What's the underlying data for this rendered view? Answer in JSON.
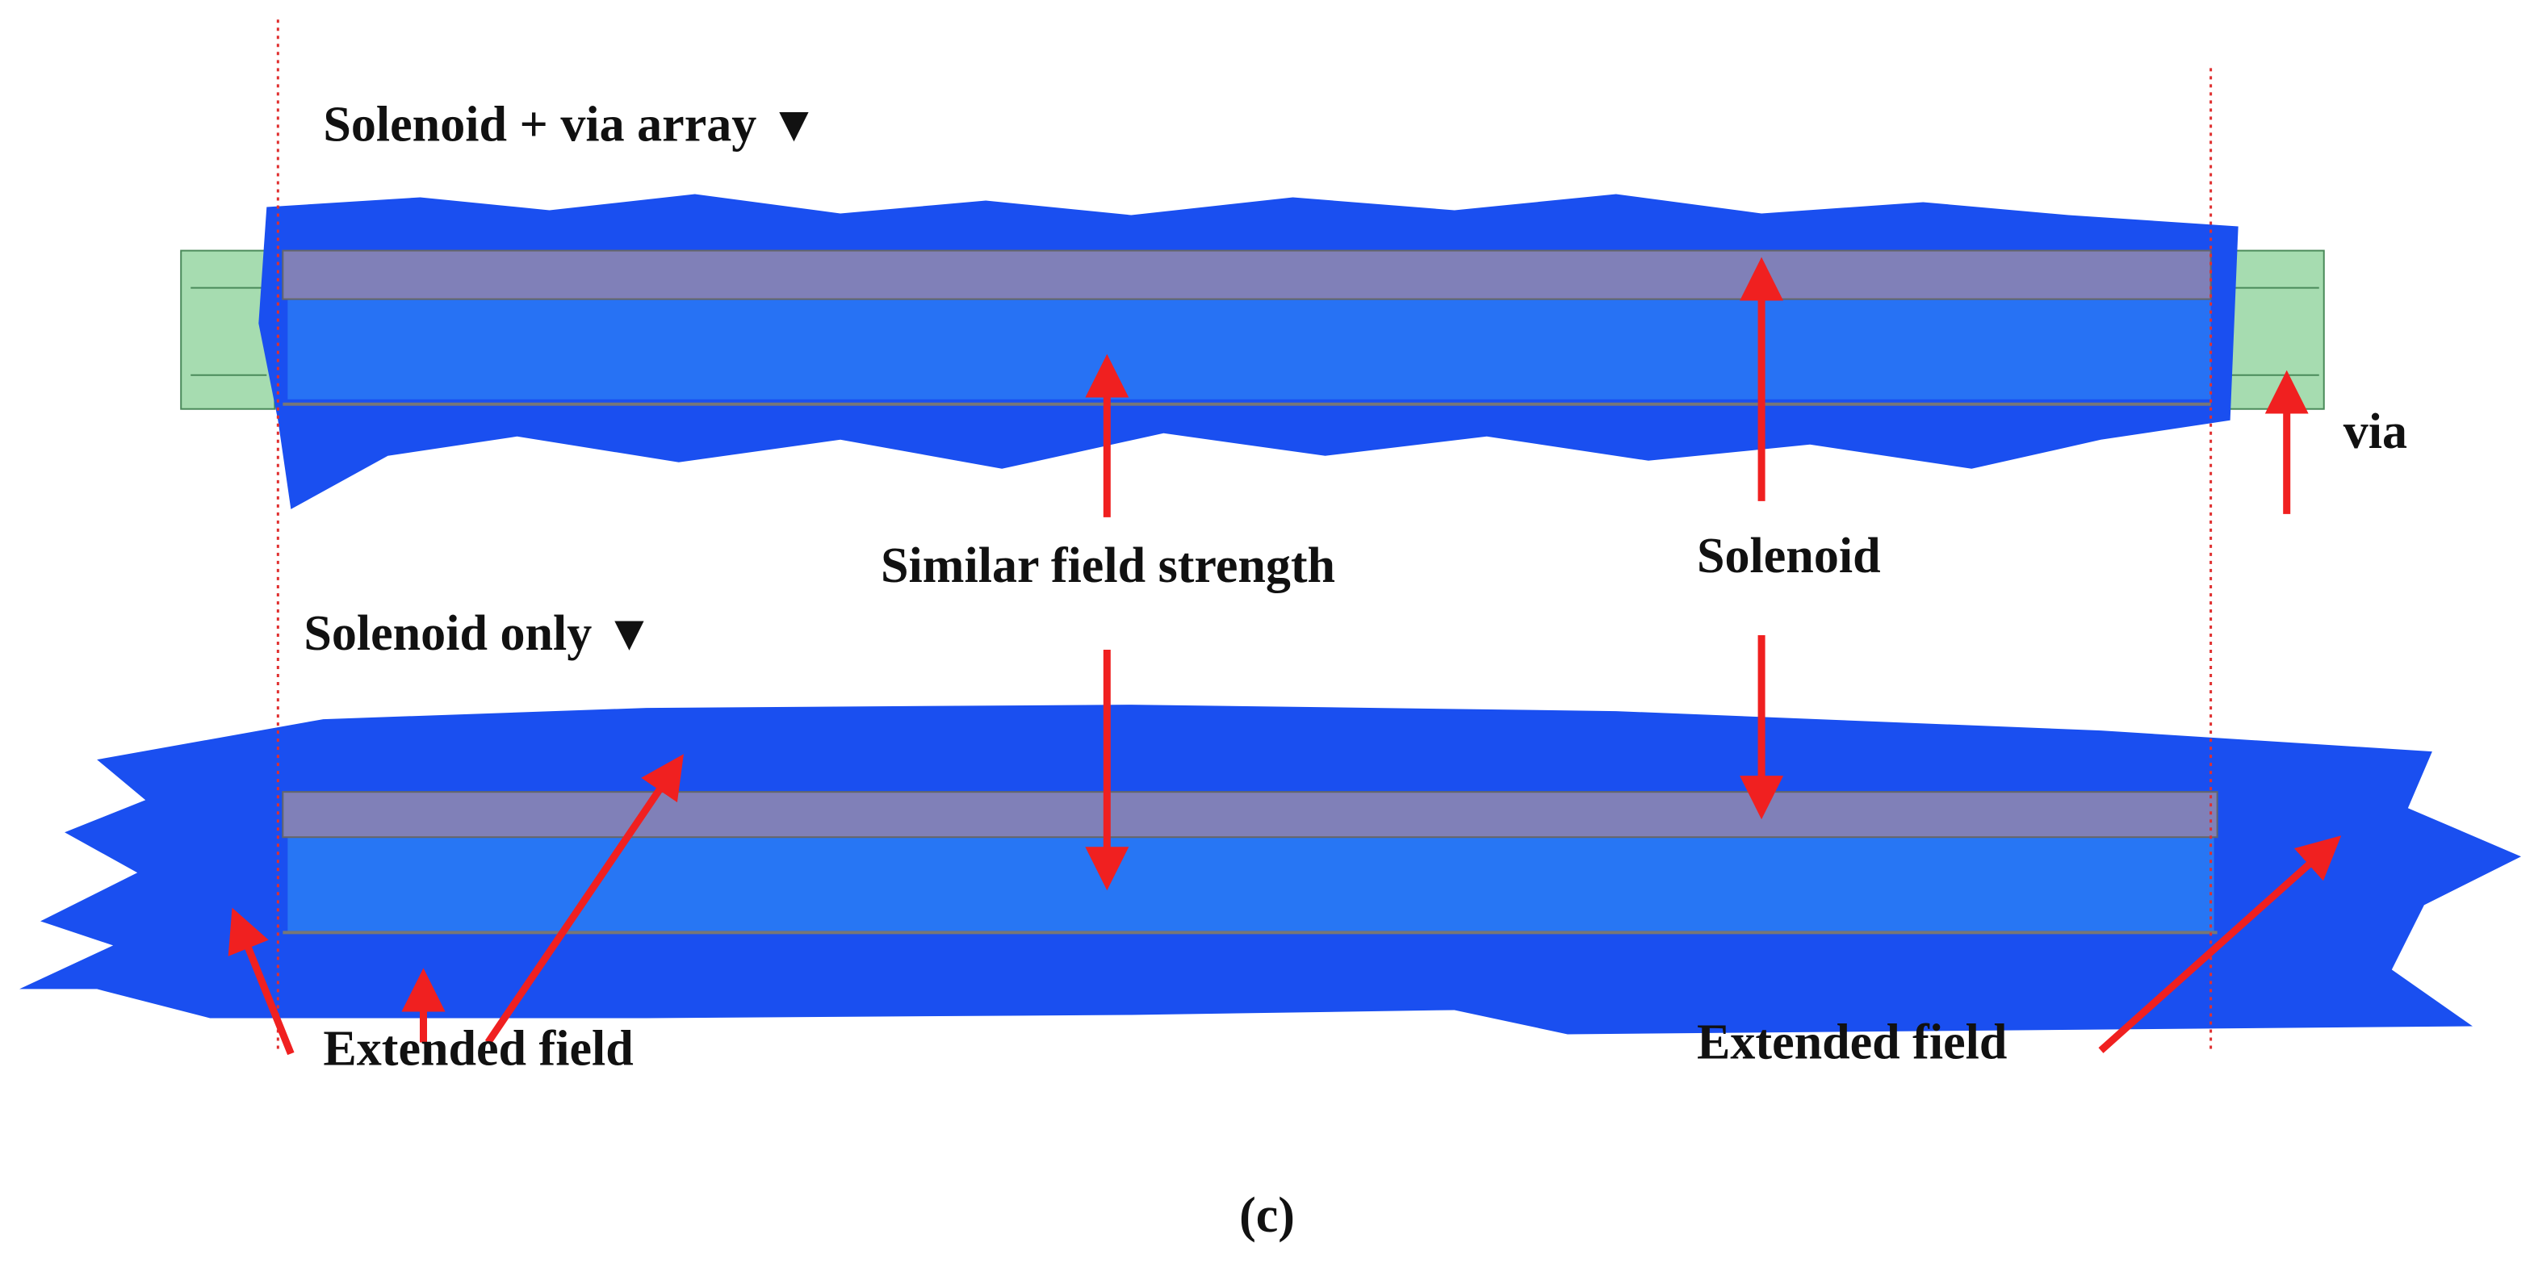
{
  "panels": [
    {
      "label": "Solenoid + via array ▼"
    },
    {
      "label": "Solenoid only ▼"
    }
  ],
  "annotations": [
    {
      "text": "Similar field strength"
    },
    {
      "text": "Solenoid"
    },
    {
      "text": "via"
    },
    {
      "text": "Extended field"
    },
    {
      "text": "Extended field"
    }
  ],
  "caption": "(c)"
}
